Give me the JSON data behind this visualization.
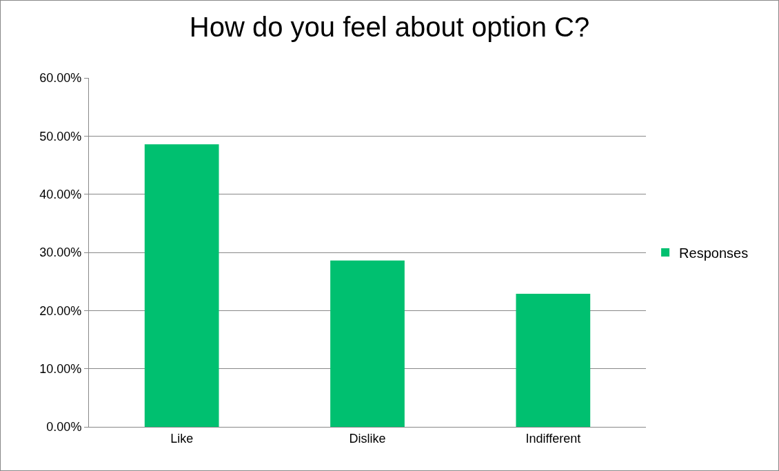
{
  "chart_data": {
    "type": "bar",
    "title": "How do you feel about option C?",
    "categories": [
      "Like",
      "Dislike",
      "Indifferent"
    ],
    "series": [
      {
        "name": "Responses",
        "color": "#00c070",
        "values": [
          48.6,
          28.6,
          22.9
        ]
      }
    ],
    "ylim": [
      0,
      60
    ],
    "yticks": [
      {
        "value": 0,
        "label": "0.00%"
      },
      {
        "value": 10,
        "label": "10.00%"
      },
      {
        "value": 20,
        "label": "20.00%"
      },
      {
        "value": 30,
        "label": "30.00%"
      },
      {
        "value": 40,
        "label": "40.00%"
      },
      {
        "value": 50,
        "label": "50.00%"
      },
      {
        "value": 60,
        "label": "60.00%"
      }
    ],
    "grid": "y",
    "legend": "right"
  }
}
